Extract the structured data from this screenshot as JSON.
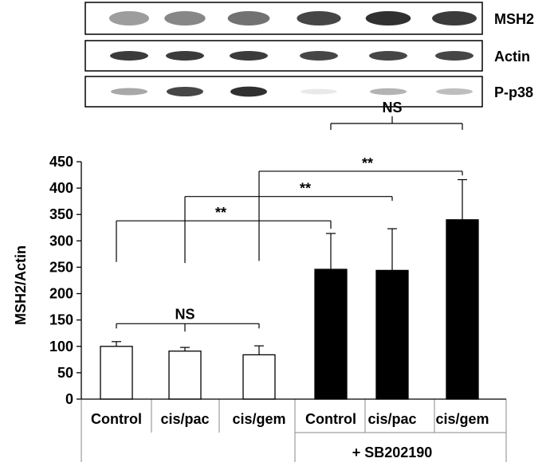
{
  "blots": {
    "rows": [
      {
        "label": "MSH2",
        "intensity": [
          0.45,
          0.55,
          0.65,
          0.85,
          0.95,
          0.9
        ]
      },
      {
        "label": "Actin",
        "intensity": [
          0.9,
          0.9,
          0.9,
          0.85,
          0.85,
          0.85
        ]
      },
      {
        "label": "P-p38",
        "intensity": [
          0.4,
          0.85,
          0.95,
          0.1,
          0.35,
          0.3
        ]
      }
    ]
  },
  "chart_data": {
    "type": "bar",
    "ylabel": "MSH2/Actin",
    "ylim": [
      0,
      450
    ],
    "yticks": [
      "0",
      "50",
      "100",
      "150",
      "200",
      "250",
      "300",
      "350",
      "400",
      "450"
    ],
    "categories": [
      "Control",
      "cis/pac",
      "cis/gem",
      "Control",
      "cis/pac",
      "cis/gem"
    ],
    "group_label": "+ SB202190",
    "values": [
      100,
      91,
      84,
      246,
      244,
      340
    ],
    "errors": [
      9,
      7,
      17,
      68,
      79,
      76
    ],
    "bar_colors": [
      "#ffffff",
      "#ffffff",
      "#ffffff",
      "#000000",
      "#000000",
      "#000000"
    ],
    "annotations": [
      "**",
      "**",
      "**",
      "NS",
      "NS"
    ]
  }
}
